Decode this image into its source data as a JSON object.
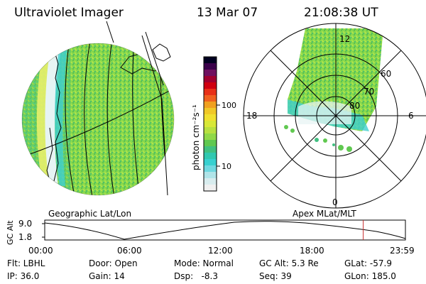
{
  "header": {
    "instrument": "Ultraviolet Imager",
    "date": "13 Mar 07",
    "time": "21:08:38 UT"
  },
  "colorbar": {
    "unit_label": "photon cm⁻²s⁻¹",
    "ticks": [
      "100",
      "10"
    ]
  },
  "panels": {
    "left_label": "Geographic Lat/Lon",
    "right_label": "Apex MLat/MLT"
  },
  "polar": {
    "mlt_labels": {
      "top": "12",
      "left": "18",
      "right": "6",
      "bottom": "0"
    },
    "lat_labels": [
      "60",
      "70",
      "80"
    ]
  },
  "altitude_plot": {
    "ylabel": "GC Alt",
    "yticks": [
      "9.0",
      "1.8"
    ],
    "xticks": [
      "00:00",
      "06:00",
      "12:00",
      "18:00",
      "23:59"
    ],
    "current_time_fraction": 0.883
  },
  "info": {
    "row1": {
      "flt": "Flt: LBHL",
      "door": "Door: Open",
      "mode": "Mode: Normal",
      "gcalt": "GC Alt: 5.3 Re",
      "glat": "GLat: -57.9"
    },
    "row2": {
      "ip": "IP: 36.0",
      "gain": "Gain: 14",
      "dsp": "Dsp:   -8.3",
      "seq": "Seq: 39",
      "glon": "GLon: 185.0"
    }
  },
  "colors": {
    "background": "#ffffff",
    "image_green": "#7fd34a",
    "image_cyan": "#30d0d0",
    "current_time_marker": "#c83232"
  }
}
